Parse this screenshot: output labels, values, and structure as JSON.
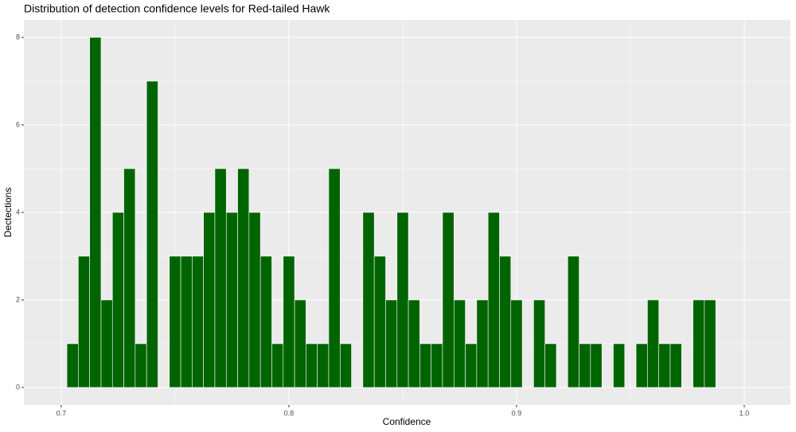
{
  "chart_data": {
    "type": "histogram",
    "title": "Distribution of detection confidence levels for Red-tailed Hawk",
    "x_label": "Confidence",
    "y_label": "Dectections",
    "bins": [
      0.7025,
      0.7075,
      0.7125,
      0.7175,
      0.7225,
      0.7275,
      0.7325,
      0.7375,
      0.7425,
      0.7475,
      0.7525,
      0.7575,
      0.7625,
      0.7675,
      0.7725,
      0.7775,
      0.7825,
      0.7875,
      0.7925,
      0.7975,
      0.8025,
      0.8075,
      0.8125,
      0.8175,
      0.8225,
      0.8275,
      0.8325,
      0.8375,
      0.8425,
      0.8475,
      0.8525,
      0.8575,
      0.8625,
      0.8675,
      0.8725,
      0.8775,
      0.8825,
      0.8875,
      0.8925,
      0.8975,
      0.9025,
      0.9075,
      0.9125,
      0.9175,
      0.9225,
      0.9275,
      0.9325,
      0.9375,
      0.9425,
      0.9475,
      0.9525,
      0.9575,
      0.9625,
      0.9675,
      0.9725,
      0.9775,
      0.9825,
      0.9875
    ],
    "values": [
      1,
      3,
      8,
      2,
      4,
      5,
      1,
      7,
      0,
      3,
      3,
      3,
      4,
      5,
      4,
      5,
      4,
      3,
      1,
      3,
      2,
      1,
      1,
      5,
      1,
      0,
      4,
      3,
      2,
      4,
      2,
      1,
      1,
      4,
      2,
      1,
      2,
      4,
      3,
      2,
      0,
      2,
      1,
      0,
      3,
      1,
      1,
      0,
      1,
      0,
      1,
      2,
      1,
      1,
      0,
      2,
      2
    ],
    "color": "#006400",
    "xlim": [
      0.6836,
      1.0203
    ],
    "ylim": [
      -0.4,
      8.4
    ],
    "xticks": [
      0.7,
      0.8,
      0.9,
      {
        "value": 1.0,
        "label": "1.0"
      }
    ],
    "yticks": [
      0,
      2,
      4,
      6,
      8
    ],
    "grid": true,
    "minor_grid": true
  }
}
